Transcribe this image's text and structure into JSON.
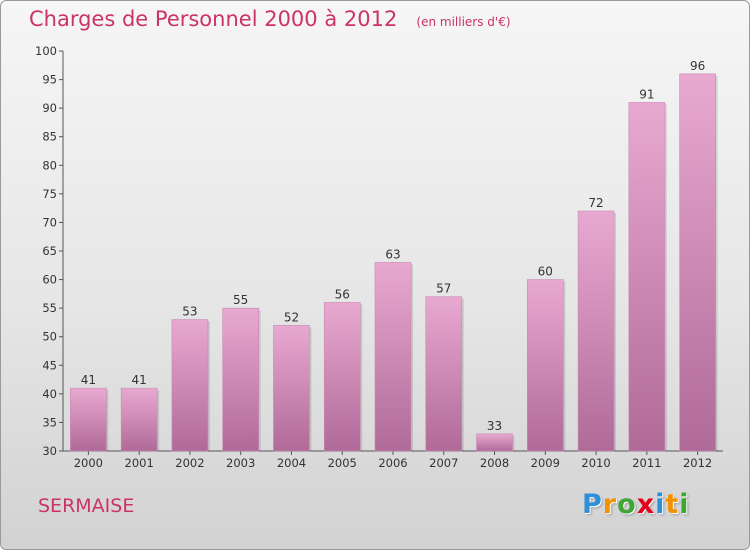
{
  "header": {
    "title": "Charges de Personnel 2000 à 2012",
    "subtitle": "(en milliers d'€)"
  },
  "footer": {
    "place": "SERMAISE",
    "logo_text": "Proxiti",
    "logo_colors": [
      "#2d8fd5",
      "#f39200",
      "#3fa535",
      "#e2001a",
      "#2d8fd5",
      "#f39200",
      "#3fa535"
    ]
  },
  "colors": {
    "accent": "#cc3366",
    "bar_top": "#e8a9d0",
    "bar_bottom": "#b06a98"
  },
  "chart_data": {
    "type": "bar",
    "title": "Charges de Personnel 2000 à 2012",
    "subtitle": "(en milliers d'€)",
    "categories": [
      "2000",
      "2001",
      "2002",
      "2003",
      "2004",
      "2005",
      "2006",
      "2007",
      "2008",
      "2009",
      "2010",
      "2011",
      "2012"
    ],
    "values": [
      41,
      41,
      53,
      55,
      52,
      56,
      63,
      57,
      33,
      60,
      72,
      91,
      96
    ],
    "ylim": [
      30,
      100
    ],
    "yticks": [
      30,
      35,
      40,
      45,
      50,
      55,
      60,
      65,
      70,
      75,
      80,
      85,
      90,
      95,
      100
    ],
    "grid": false,
    "data_labels": true
  }
}
